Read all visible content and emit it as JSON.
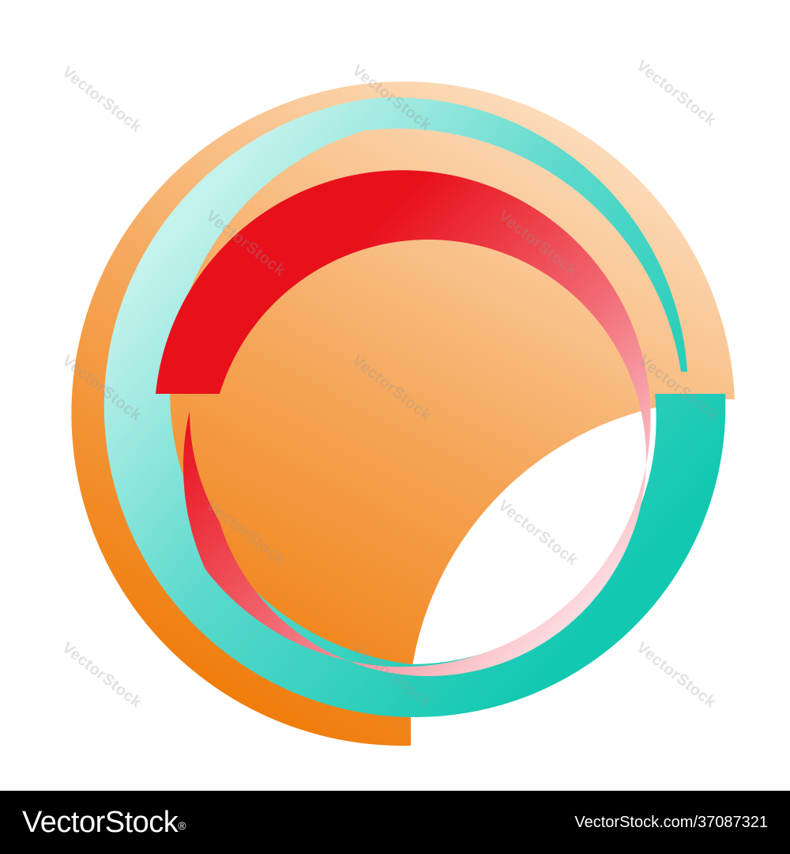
{
  "artwork": {
    "description_icon": "concentric-rings-logo-icon",
    "colors": {
      "orange_ring_start": "#f07e0e",
      "orange_ring_end": "#fcd8b4",
      "teal_ring_start": "#0fc7b0",
      "teal_ring_end": "#bdf1ea",
      "red_ring_start": "#e8101c",
      "red_ring_end": "#fbd2d8",
      "background": "#ffffff"
    }
  },
  "watermark": {
    "text": "VectorStock"
  },
  "footer": {
    "brand": "VectorStock",
    "registered": "®",
    "stock_id": "VectorStock.com/37087321",
    "background": "#000000",
    "text_color": "#ffffff"
  }
}
